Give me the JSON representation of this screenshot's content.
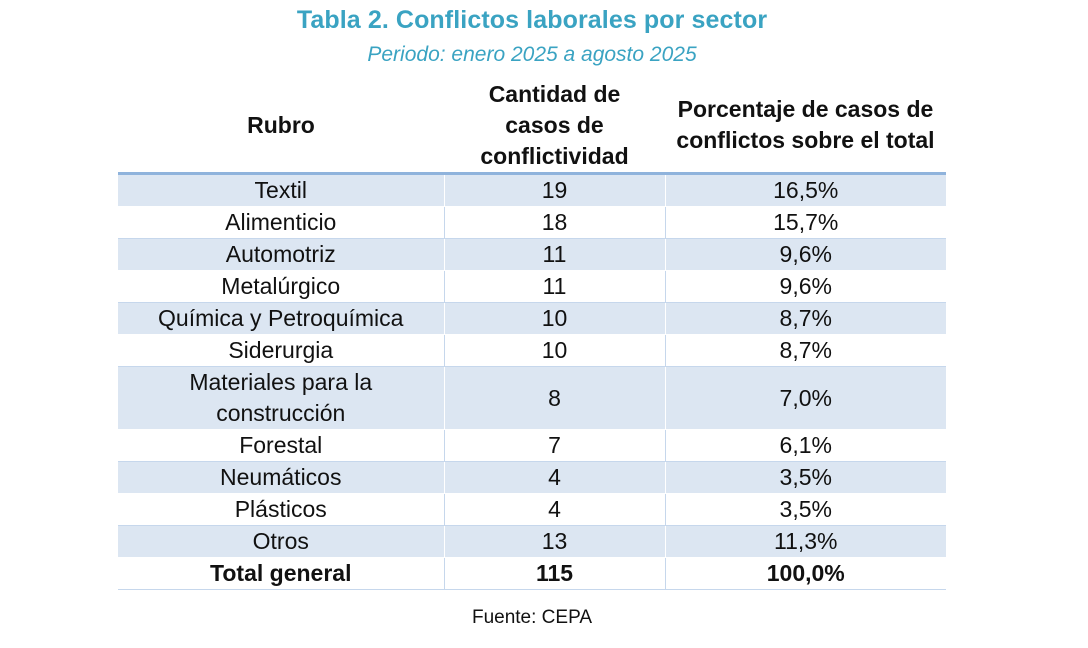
{
  "title": "Tabla 2. Conflictos laborales por sector",
  "subtitle": "Periodo: enero 2025 a agosto 2025",
  "table": {
    "headers": [
      "Rubro",
      "Cantidad de casos de conflictividad",
      "Porcentaje de casos de conflictos sobre el total"
    ],
    "rows": [
      [
        "Textil",
        "19",
        "16,5%"
      ],
      [
        "Alimenticio",
        "18",
        "15,7%"
      ],
      [
        "Automotriz",
        "11",
        "9,6%"
      ],
      [
        "Metalúrgico",
        "11",
        "9,6%"
      ],
      [
        "Química y Petroquímica",
        "10",
        "8,7%"
      ],
      [
        "Siderurgia",
        "10",
        "8,7%"
      ],
      [
        "Materiales para la construcción",
        "8",
        "7,0%"
      ],
      [
        "Forestal",
        "7",
        "6,1%"
      ],
      [
        "Neumáticos",
        "4",
        "3,5%"
      ],
      [
        "Plásticos",
        "4",
        "3,5%"
      ],
      [
        "Otros",
        "13",
        "11,3%"
      ]
    ],
    "total": [
      "Total general",
      "115",
      "100,0%"
    ]
  },
  "source": "Fuente: CEPA",
  "colors": {
    "title": "#3aa3c2",
    "band": "#dce6f2",
    "header_rule": "#8fb3dc"
  }
}
